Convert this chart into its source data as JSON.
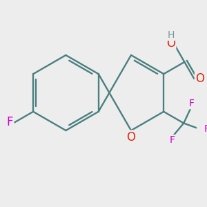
{
  "bg_color": "#ededee",
  "bond_color": "#4a7f7f",
  "bond_width": 1.7,
  "atom_colors": {
    "O": "#e8220a",
    "F": "#cc00cc",
    "H": "#7a9898",
    "C": "#4a7f7f"
  },
  "font_size_main": 12,
  "font_size_sub": 10,
  "figsize": [
    3.0,
    3.0
  ],
  "dpi": 100
}
